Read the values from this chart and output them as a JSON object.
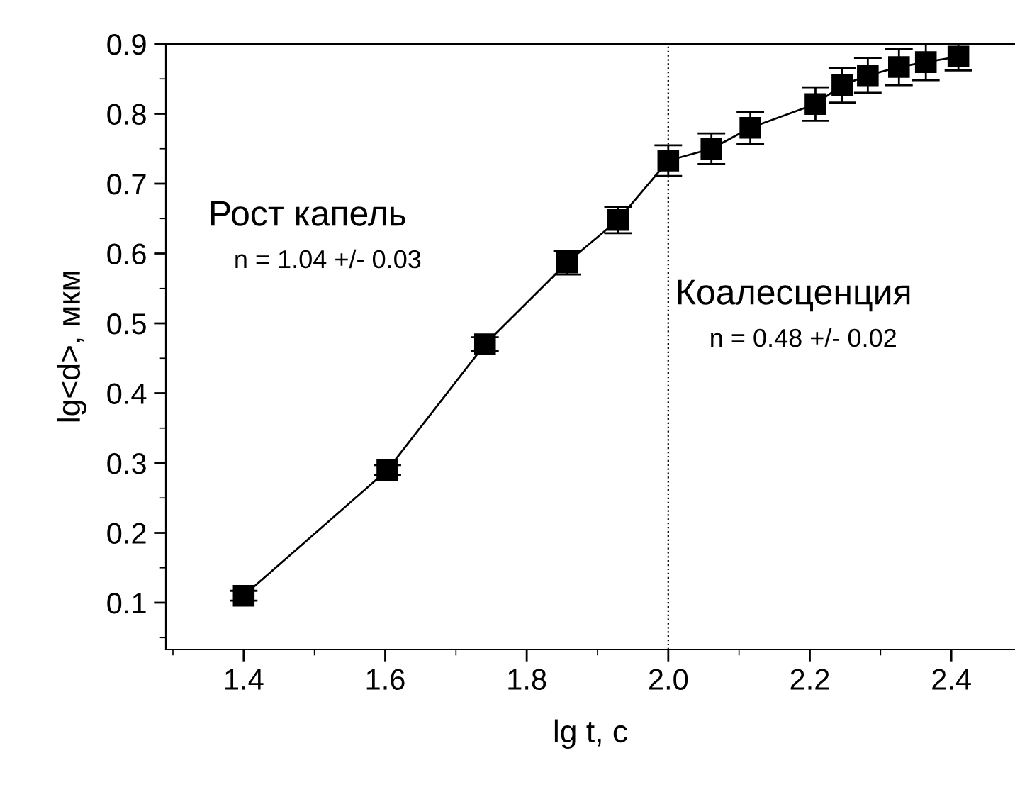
{
  "chart_data": {
    "type": "line",
    "xlabel": "lg t, c",
    "ylabel": "lg<d>, мкм",
    "x": [
      1.4,
      1.603,
      1.741,
      1.857,
      1.929,
      2.0,
      2.061,
      2.116,
      2.208,
      2.246,
      2.282,
      2.326,
      2.364,
      2.41
    ],
    "series": [
      {
        "color": "#000000",
        "values": [
          0.11,
          0.29,
          0.47,
          0.587,
          0.648,
          0.733,
          0.75,
          0.78,
          0.814,
          0.841,
          0.855,
          0.867,
          0.874,
          0.882
        ],
        "errors": [
          0.007,
          0.007,
          0.01,
          0.017,
          0.019,
          0.022,
          0.022,
          0.023,
          0.024,
          0.025,
          0.025,
          0.026,
          0.026,
          0.02
        ]
      }
    ],
    "marker": "square",
    "line_style": "solid",
    "xlim": [
      1.29,
      2.49
    ],
    "ylim": [
      0.033,
      0.9
    ],
    "xticks": [
      {
        "value": 1.4,
        "label": "1.4"
      },
      {
        "value": 1.6,
        "label": "1.6"
      },
      {
        "value": 1.8,
        "label": "1.8"
      },
      {
        "value": 2.0,
        "label": "2.0"
      },
      {
        "value": 2.2,
        "label": "2.2"
      },
      {
        "value": 2.4,
        "label": "2.4"
      }
    ],
    "yticks": [
      0.1,
      0.2,
      0.3,
      0.4,
      0.5,
      0.6,
      0.7,
      0.8,
      0.9
    ],
    "ref_lines": [
      {
        "axis": "x",
        "value": 2.0,
        "line_style": "dotted",
        "color": "#000000"
      }
    ],
    "annotations": [
      "Рост капель",
      "n = 1.04 +/- 0.03",
      "Коалесценция",
      "n = 0.48 +/- 0.02"
    ],
    "grid": false,
    "legend": false
  }
}
